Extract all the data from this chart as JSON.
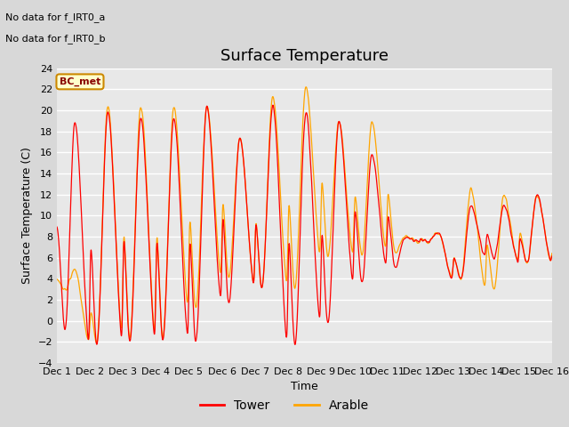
{
  "title": "Surface Temperature",
  "xlabel": "Time",
  "ylabel": "Surface Temperature (C)",
  "ylim": [
    -4,
    24
  ],
  "yticks": [
    -4,
    -2,
    0,
    2,
    4,
    6,
    8,
    10,
    12,
    14,
    16,
    18,
    20,
    22,
    24
  ],
  "xtick_labels": [
    "Dec 1",
    "Dec 2",
    "Dec 3",
    "Dec 4",
    "Dec 5",
    "Dec 6",
    "Dec 7",
    "Dec 8",
    "Dec 9",
    "Dec 10",
    "Dec 11",
    "Dec 12",
    "Dec 13",
    "Dec 14",
    "Dec 15",
    "Dec 16"
  ],
  "note_line1": "No data for f_IRT0_a",
  "note_line2": "No data for f_IRT0_b",
  "legend_label1": "Tower",
  "legend_label2": "Arable",
  "legend_color1": "#ff0000",
  "legend_color2": "#ffa500",
  "bc_met_label": "BC_met",
  "bc_met_bg": "#ffffcc",
  "bc_met_border": "#cc8800",
  "bc_met_text": "#880000",
  "figure_bg": "#d8d8d8",
  "plot_bg": "#e8e8e8",
  "grid_color": "#ffffff",
  "title_fontsize": 13,
  "label_fontsize": 9,
  "tick_fontsize": 8,
  "n_points": 2160,
  "days": 15,
  "day_params": [
    [
      19.0,
      -1.0,
      4.8,
      3.0,
      13,
      6
    ],
    [
      20.0,
      -2.5,
      20.5,
      -2.2,
      13,
      5
    ],
    [
      19.5,
      -2.2,
      20.5,
      -1.8,
      13,
      5
    ],
    [
      19.5,
      -2.0,
      20.5,
      -1.8,
      13,
      5
    ],
    [
      20.5,
      -2.2,
      20.5,
      1.0,
      13,
      5
    ],
    [
      17.5,
      1.5,
      17.5,
      4.0,
      13,
      5
    ],
    [
      20.5,
      3.0,
      21.5,
      3.0,
      13,
      5
    ],
    [
      20.0,
      -2.5,
      22.5,
      3.0,
      13,
      5
    ],
    [
      19.0,
      -0.5,
      19.0,
      6.0,
      13,
      5
    ],
    [
      16.0,
      3.5,
      19.0,
      6.0,
      13,
      6
    ],
    [
      8.0,
      5.0,
      8.0,
      6.5,
      13,
      6
    ],
    [
      8.5,
      7.5,
      8.5,
      7.5,
      13,
      6
    ],
    [
      11.0,
      4.0,
      12.5,
      4.0,
      13,
      6
    ],
    [
      11.0,
      6.0,
      12.0,
      3.0,
      13,
      6
    ],
    [
      12.0,
      5.5,
      12.0,
      5.5,
      13,
      6
    ]
  ]
}
